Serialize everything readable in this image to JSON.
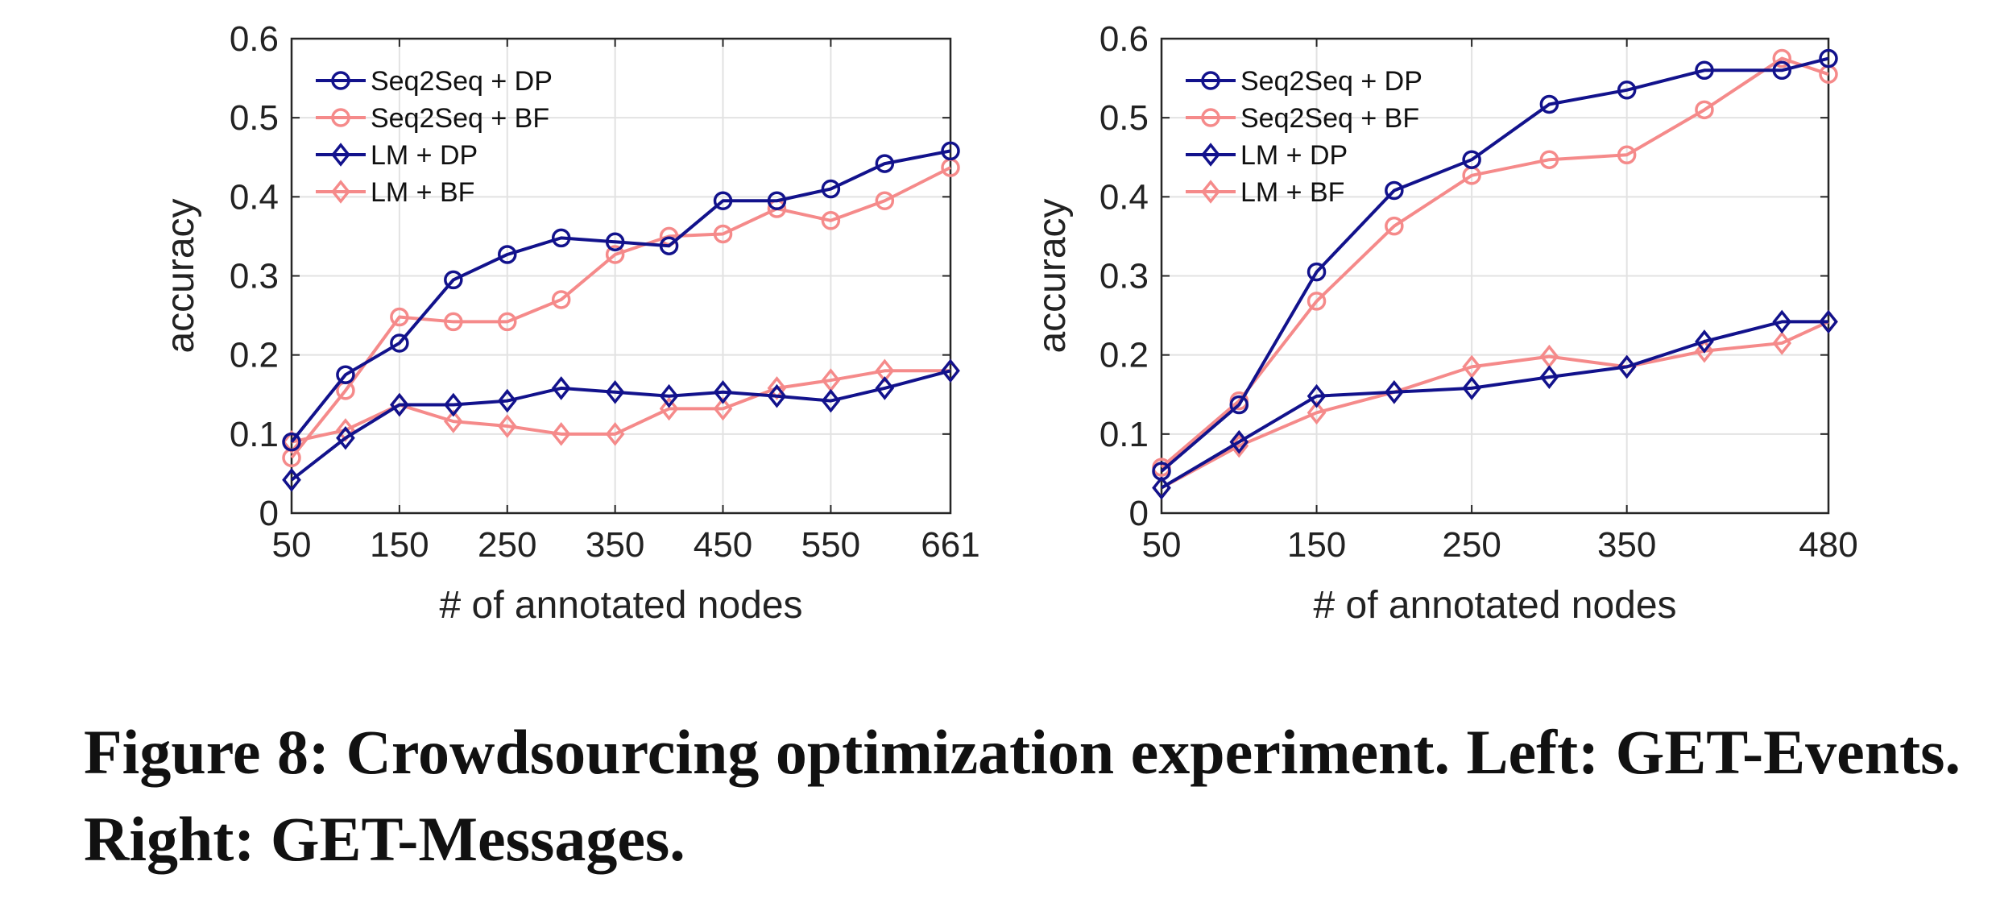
{
  "chart_data": [
    {
      "type": "line",
      "panel": "left",
      "xlabel": "# of annotated nodes",
      "ylabel": "accuracy",
      "xlim": [
        50,
        661
      ],
      "ylim": [
        0,
        0.6
      ],
      "xticks": [
        50,
        150,
        250,
        350,
        450,
        550,
        661
      ],
      "yticks": [
        0,
        0.1,
        0.2,
        0.3,
        0.4,
        0.5,
        0.6
      ],
      "grid": true,
      "legend_position": "top-left",
      "x": [
        50,
        100,
        150,
        200,
        250,
        300,
        350,
        400,
        450,
        500,
        550,
        600,
        661
      ],
      "series": [
        {
          "name": "Seq2Seq + DP",
          "color": "#12128c",
          "marker": "circle",
          "values": [
            0.09,
            0.175,
            0.215,
            0.295,
            0.327,
            0.348,
            0.343,
            0.338,
            0.395,
            0.395,
            0.41,
            0.442,
            0.458
          ]
        },
        {
          "name": "Seq2Seq + BF",
          "color": "#f58a8a",
          "marker": "circle",
          "values": [
            0.07,
            0.155,
            0.248,
            0.242,
            0.242,
            0.27,
            0.327,
            0.35,
            0.353,
            0.385,
            0.37,
            0.395,
            0.437
          ]
        },
        {
          "name": "LM + DP",
          "color": "#12128c",
          "marker": "diamond",
          "values": [
            0.042,
            0.095,
            0.137,
            0.137,
            0.142,
            0.158,
            0.153,
            0.148,
            0.153,
            0.148,
            0.142,
            0.158,
            0.18
          ]
        },
        {
          "name": "LM + BF",
          "color": "#f58a8a",
          "marker": "diamond",
          "values": [
            0.09,
            0.105,
            0.137,
            0.116,
            0.11,
            0.1,
            0.1,
            0.132,
            0.132,
            0.158,
            0.168,
            0.18,
            0.18
          ]
        }
      ]
    },
    {
      "type": "line",
      "panel": "right",
      "xlabel": "# of annotated nodes",
      "ylabel": "accuracy",
      "xlim": [
        50,
        480
      ],
      "ylim": [
        0,
        0.6
      ],
      "xticks": [
        50,
        150,
        250,
        350,
        480
      ],
      "yticks": [
        0,
        0.1,
        0.2,
        0.3,
        0.4,
        0.5,
        0.6
      ],
      "grid": true,
      "legend_position": "top-left",
      "x": [
        50,
        100,
        150,
        200,
        250,
        300,
        350,
        400,
        450,
        480
      ],
      "series": [
        {
          "name": "Seq2Seq + DP",
          "color": "#12128c",
          "marker": "circle",
          "values": [
            0.053,
            0.137,
            0.305,
            0.408,
            0.447,
            0.517,
            0.535,
            0.56,
            0.56,
            0.575
          ]
        },
        {
          "name": "Seq2Seq + BF",
          "color": "#f58a8a",
          "marker": "circle",
          "values": [
            0.058,
            0.142,
            0.268,
            0.363,
            0.427,
            0.447,
            0.453,
            0.51,
            0.575,
            0.555
          ]
        },
        {
          "name": "LM + DP",
          "color": "#12128c",
          "marker": "diamond",
          "values": [
            0.032,
            0.09,
            0.148,
            0.153,
            0.158,
            0.172,
            0.185,
            0.217,
            0.242,
            0.242
          ]
        },
        {
          "name": "LM + BF",
          "color": "#f58a8a",
          "marker": "diamond",
          "values": [
            0.032,
            0.085,
            0.127,
            0.153,
            0.185,
            0.198,
            0.185,
            0.205,
            0.215,
            0.242
          ]
        }
      ]
    }
  ],
  "caption": "Figure 8: Crowdsourcing optimization experiment. Left: GET-Events. Right: GET-Messages."
}
